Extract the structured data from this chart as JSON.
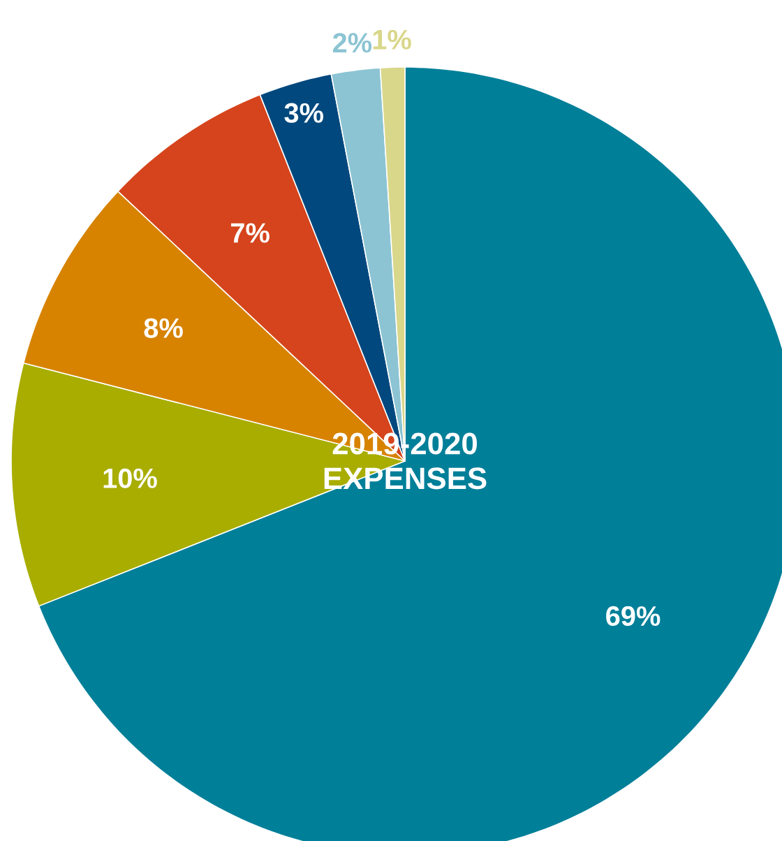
{
  "chart_data": {
    "type": "pie",
    "title": "2019-2020 EXPENSES",
    "categories": [
      null,
      null,
      null,
      null,
      null,
      null,
      null
    ],
    "values": [
      69,
      10,
      8,
      7,
      3,
      2,
      1
    ],
    "value_labels": [
      "69%",
      "10%",
      "8%",
      "7%",
      "3%",
      "2%",
      "1%"
    ],
    "colors": [
      "#007f99",
      "#a8ad00",
      "#d78300",
      "#d5441c",
      "#00487d",
      "#8cc4d3",
      "#d9d78a"
    ]
  }
}
